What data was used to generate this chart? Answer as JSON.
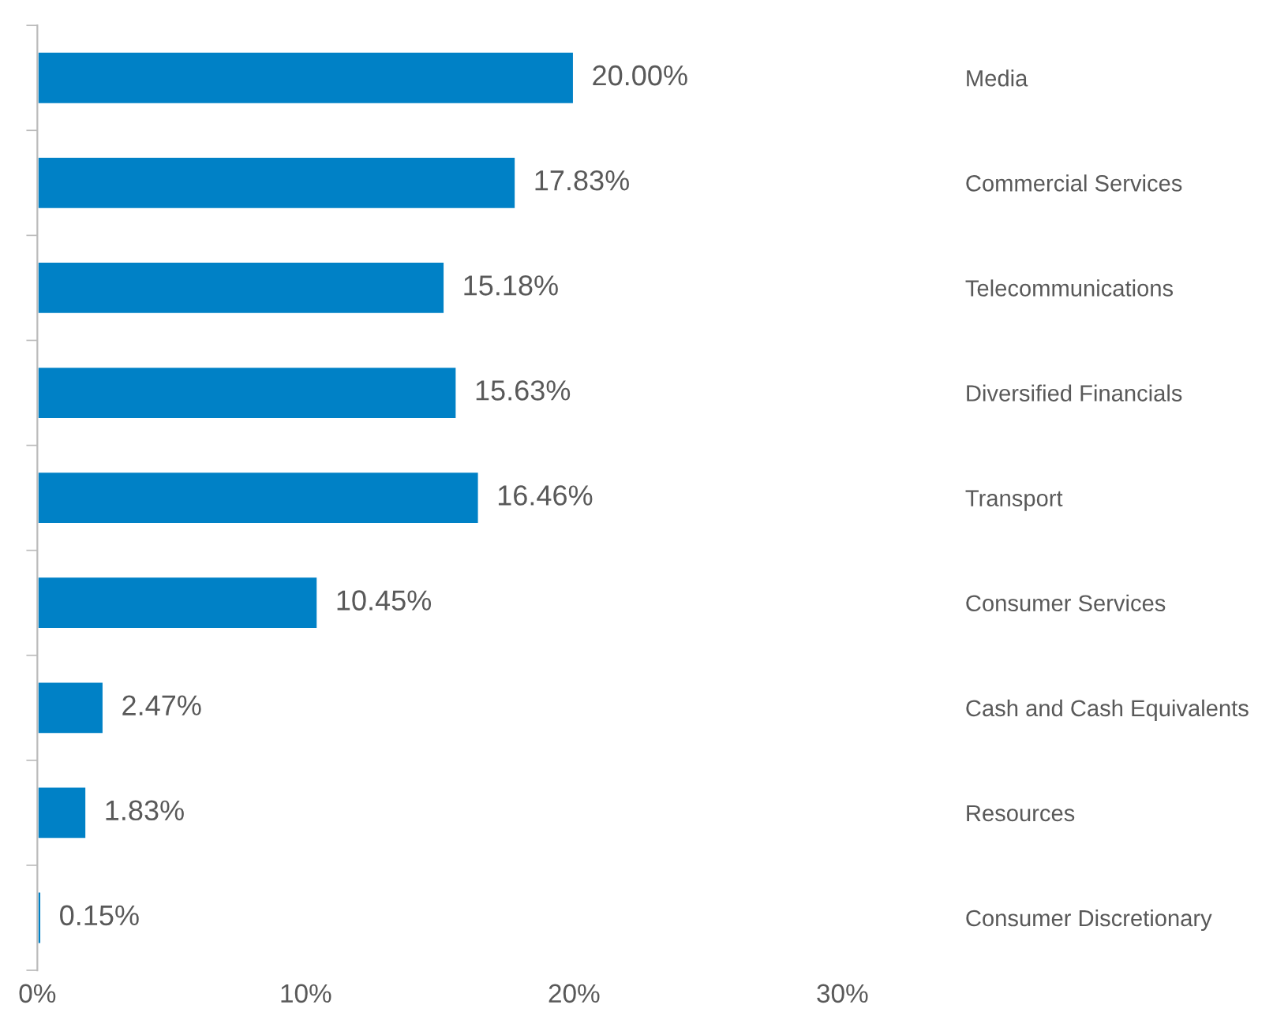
{
  "chart_data": {
    "type": "bar",
    "orientation": "horizontal",
    "categories": [
      "Media",
      "Commercial Services",
      "Telecommunications",
      "Diversified Financials",
      "Transport",
      "Consumer Services",
      "Cash and Cash Equivalents",
      "Resources",
      "Consumer Discretionary"
    ],
    "values": [
      20.0,
      17.83,
      15.18,
      15.63,
      16.46,
      10.45,
      2.47,
      1.83,
      0.15
    ],
    "color": "#0081c6",
    "xlim": [
      0,
      30
    ],
    "xticks": [
      {
        "value": 0,
        "label": "0%"
      },
      {
        "value": 10,
        "label": "10%"
      },
      {
        "value": 20,
        "label": "20%"
      },
      {
        "value": 30,
        "label": "30%"
      }
    ],
    "value_labels": [
      "20.00%",
      "17.83%",
      "15.18%",
      "15.63%",
      "16.46%",
      "10.45%",
      "2.47%",
      "1.83%",
      "0.15%"
    ],
    "grid": false,
    "legend": false
  }
}
